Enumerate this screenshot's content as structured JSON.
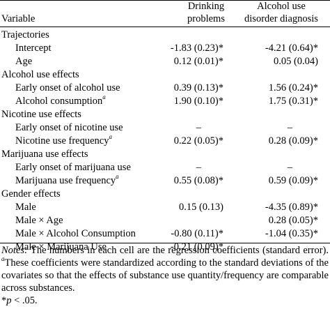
{
  "header": {
    "variable": "Variable",
    "col1_line1": "Drinking",
    "col1_line2": "problems",
    "col2_line1": "Alcohol use",
    "col2_line2": "disorder diagnosis"
  },
  "rows": [
    {
      "label": "Trajectories",
      "type": "section"
    },
    {
      "label": "Intercept",
      "type": "item",
      "v1": "-1.83 (0.23)*",
      "v2": "-4.21 (0.64)*"
    },
    {
      "label": "Age",
      "type": "item",
      "v1": "0.12 (0.01)*",
      "v2": "0.05 (0.04)"
    },
    {
      "label": "Alcohol use effects",
      "type": "section"
    },
    {
      "label": "Early onset of alcohol use",
      "type": "item",
      "v1": "0.39 (0.13)*",
      "v2": "1.56 (0.24)*"
    },
    {
      "label": "Alcohol consumption",
      "sup": "a",
      "type": "item",
      "v1": "1.90 (0.10)*",
      "v2": "1.75 (0.31)*"
    },
    {
      "label": "Nicotine use effects",
      "type": "section"
    },
    {
      "label": "Early onset of nicotine use",
      "type": "item",
      "v1": "–",
      "v2": "–"
    },
    {
      "label": "Nicotine use frequency",
      "sup": "a",
      "type": "item",
      "v1": "0.22 (0.05)*",
      "v2": "0.28 (0.09)*"
    },
    {
      "label": "Marijuana use effects",
      "type": "section"
    },
    {
      "label": "Early onset of marijuana use",
      "type": "item",
      "v1": "–",
      "v2": "–"
    },
    {
      "label": "Marijuana use frequency",
      "sup": "a",
      "type": "item",
      "v1": "0.55 (0.08)*",
      "v2": "0.59 (0.09)*"
    },
    {
      "label": "Gender effects",
      "type": "section"
    },
    {
      "label": "Male",
      "type": "item",
      "v1": "0.15 (0.13)",
      "v2": "-4.35 (0.89)*"
    },
    {
      "label": "Male × Age",
      "type": "item",
      "v1": "",
      "v2": "0.28 (0.05)*"
    },
    {
      "label": "Male × Alcohol Consumption",
      "type": "item",
      "v1": "-0.80 (0.11)*",
      "v2": "-1.04 (0.35)*"
    },
    {
      "label": "Male × Marijuana Use",
      "type": "item",
      "v1": "-0.21 (0.09)*",
      "v2": ""
    }
  ],
  "notes": {
    "label": "Notes:",
    "text1": " The numbers in each cell are the regression coefficients (standard error). ",
    "sup": "a",
    "text2": "These coefficients were standardized according to the standard deviations of the covariates so that the effects of substance use quantity/frequency are comparable across substances.",
    "sig_mark": "*",
    "sig_p": "p",
    "sig_rest": " < .05."
  }
}
